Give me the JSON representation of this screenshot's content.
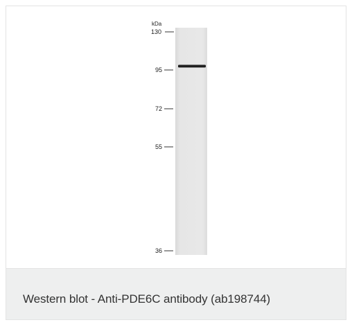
{
  "figure": {
    "unit_label": "kDa",
    "markers": [
      {
        "label": "130",
        "kda": 130
      },
      {
        "label": "95",
        "kda": 95
      },
      {
        "label": "72",
        "kda": 72
      },
      {
        "label": "55",
        "kda": 55
      },
      {
        "label": "36",
        "kda": 36
      }
    ],
    "bands": [
      {
        "lane": 1,
        "approx_kda": 98,
        "intensity": "strong"
      }
    ],
    "lane_count": 1
  },
  "caption": {
    "text": "Western blot - Anti-PDE6C antibody (ab198744)"
  }
}
